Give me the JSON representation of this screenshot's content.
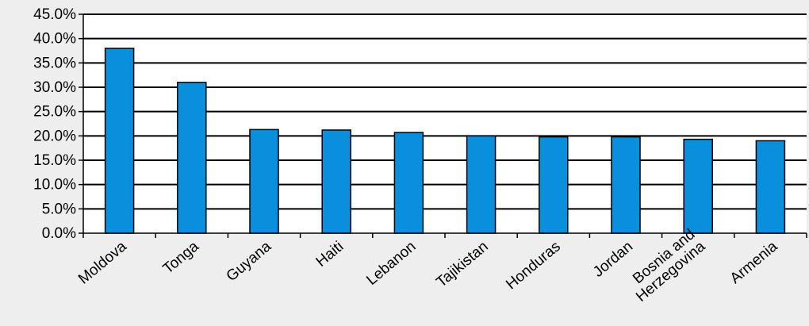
{
  "chart_data": {
    "type": "bar",
    "title": "",
    "xlabel": "",
    "ylabel": "",
    "ylim": [
      0,
      45
    ],
    "yticks": [
      "0.0%",
      "5.0%",
      "10.0%",
      "15.0%",
      "20.0%",
      "25.0%",
      "30.0%",
      "35.0%",
      "40.0%",
      "45.0%"
    ],
    "categories": [
      [
        "Moldova"
      ],
      [
        "Tonga"
      ],
      [
        "Guyana"
      ],
      [
        "Haiti"
      ],
      [
        "Lebanon"
      ],
      [
        "Tajikistan"
      ],
      [
        "Honduras"
      ],
      [
        "Jordan"
      ],
      [
        "Bosnia and",
        "Herzegovina"
      ],
      [
        "Armenia"
      ]
    ],
    "values": [
      38.0,
      31.0,
      21.3,
      21.2,
      20.7,
      20.0,
      19.8,
      19.8,
      19.3,
      19.0
    ],
    "grid": true,
    "legend": "none",
    "colors": {
      "bar": "#0a8fdc",
      "bar_edge": "#000000",
      "grid": "#000000",
      "background": "#eeeeee",
      "plot_area": "#ffffff"
    }
  }
}
